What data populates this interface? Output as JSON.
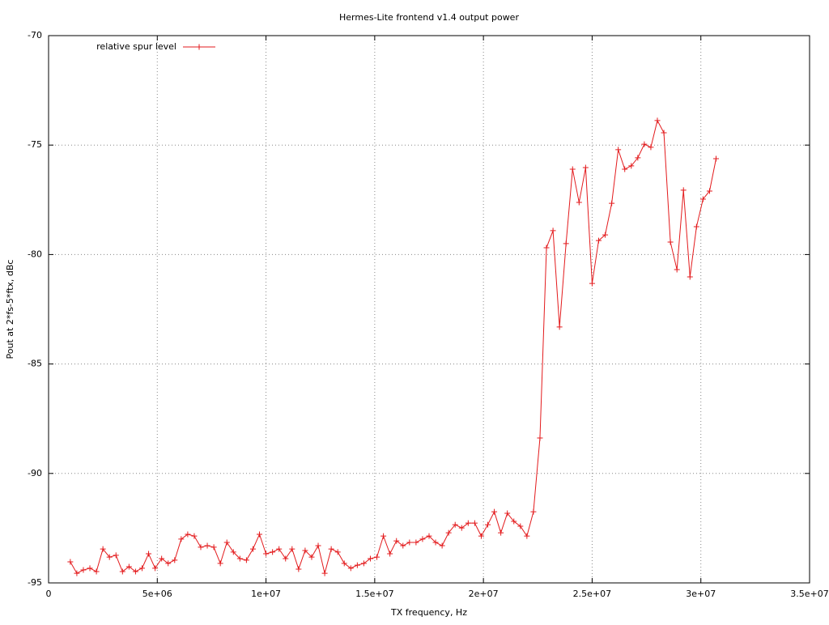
{
  "chart_data": {
    "type": "line",
    "title": "Hermes-Lite frontend v1.4 output power",
    "x_label": "TX frequency, Hz",
    "y_label": "Pout at 2*fs-5*ftx, dBc",
    "xlim": [
      0,
      35000000
    ],
    "ylim": [
      -95,
      -70
    ],
    "xticks": [
      0,
      {
        "value": 5000000,
        "label": "5e+06"
      },
      {
        "value": 10000000,
        "label": "1e+07"
      },
      {
        "value": 15000000,
        "label": "1.5e+07"
      },
      {
        "value": 20000000,
        "label": "2e+07"
      },
      {
        "value": 25000000,
        "label": "2.5e+07"
      },
      {
        "value": 30000000,
        "label": "3e+07"
      },
      {
        "value": 35000000,
        "label": "3.5e+07"
      }
    ],
    "yticks": [
      -95,
      -90,
      -85,
      -80,
      -75,
      -70
    ],
    "grid": true,
    "legend": "top left",
    "x": [
      1000000,
      1300000,
      1600000,
      1900000,
      2200000,
      2500000,
      2800000,
      3100000,
      3400000,
      3700000,
      4000000,
      4300000,
      4600000,
      4900000,
      5200000,
      5500000,
      5800000,
      6100000,
      6400000,
      6700000,
      7000000,
      7300000,
      7600000,
      7900000,
      8200000,
      8500000,
      8800000,
      9100000,
      9400000,
      9700000,
      10000000,
      10300000,
      10600000,
      10900000,
      11200000,
      11500000,
      11800000,
      12100000,
      12400000,
      12700000,
      13000000,
      13300000,
      13600000,
      13900000,
      14200000,
      14500000,
      14800000,
      15100000,
      15400000,
      15700000,
      16000000,
      16300000,
      16600000,
      16900000,
      17200000,
      17500000,
      17800000,
      18100000,
      18400000,
      18700000,
      19000000,
      19300000,
      19600000,
      19900000,
      20200000,
      20500000,
      20800000,
      21100000,
      21400000,
      21700000,
      22000000,
      22300000,
      22600000,
      22900000,
      23200000,
      23500000,
      23800000,
      24100000,
      24400000,
      24700000,
      25000000,
      25300000,
      25600000,
      25900000,
      26200000,
      26500000,
      26800000,
      27100000,
      27400000,
      27700000,
      28000000,
      28300000,
      28600000,
      28900000,
      29200000,
      29500000,
      29800000,
      30100000,
      30400000,
      30700000
    ],
    "series": [
      {
        "name": "relative spur level",
        "color": "#e31a1c",
        "values": [
          -94.04,
          -94.56,
          -94.41,
          -94.33,
          -94.48,
          -93.45,
          -93.82,
          -93.74,
          -94.48,
          -94.26,
          -94.48,
          -94.33,
          -93.67,
          -94.33,
          -93.89,
          -94.11,
          -93.96,
          -93.0,
          -92.78,
          -92.86,
          -93.37,
          -93.3,
          -93.37,
          -94.11,
          -93.15,
          -93.59,
          -93.89,
          -93.96,
          -93.45,
          -92.78,
          -93.67,
          -93.59,
          -93.45,
          -93.89,
          -93.45,
          -94.37,
          -93.52,
          -93.82,
          -93.3,
          -94.56,
          -93.45,
          -93.59,
          -94.11,
          -94.33,
          -94.19,
          -94.11,
          -93.89,
          -93.82,
          -92.86,
          -93.67,
          -93.08,
          -93.3,
          -93.15,
          -93.15,
          -93.0,
          -92.86,
          -93.15,
          -93.3,
          -92.71,
          -92.34,
          -92.49,
          -92.27,
          -92.27,
          -92.86,
          -92.34,
          -91.75,
          -92.71,
          -91.82,
          -92.19,
          -92.41,
          -92.86,
          -91.75,
          -88.38,
          -79.69,
          -78.91,
          -83.31,
          -79.5,
          -76.1,
          -77.62,
          -76.03,
          -81.32,
          -79.36,
          -79.1,
          -77.66,
          -75.21,
          -76.1,
          -75.95,
          -75.58,
          -74.96,
          -75.1,
          -73.88,
          -74.44,
          -79.43,
          -80.69,
          -77.06,
          -81.02,
          -78.73,
          -77.47,
          -77.1,
          -75.62
        ]
      }
    ]
  }
}
